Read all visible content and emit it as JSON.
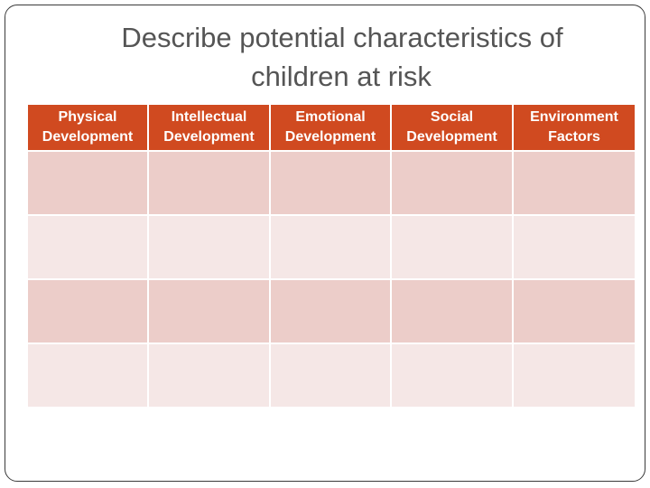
{
  "slide": {
    "title_lines": [
      "Describe potential characteristics of",
      "children at risk"
    ]
  },
  "table": {
    "columns": [
      {
        "line1": "Physical",
        "line2": "Development"
      },
      {
        "line1": "Intellectual",
        "line2": "Development"
      },
      {
        "line1": "Emotional",
        "line2": "Development"
      },
      {
        "line1": "Social",
        "line2": "Development"
      },
      {
        "line1": "Environment",
        "line2": "Factors"
      }
    ],
    "rows": [
      [
        "",
        "",
        "",
        "",
        ""
      ],
      [
        "",
        "",
        "",
        "",
        ""
      ],
      [
        "",
        "",
        "",
        "",
        ""
      ],
      [
        "",
        "",
        "",
        "",
        ""
      ]
    ],
    "colors": {
      "header_bg": "#d04a20",
      "row_odd": "#eccdc9",
      "row_even": "#f5e7e6"
    }
  }
}
